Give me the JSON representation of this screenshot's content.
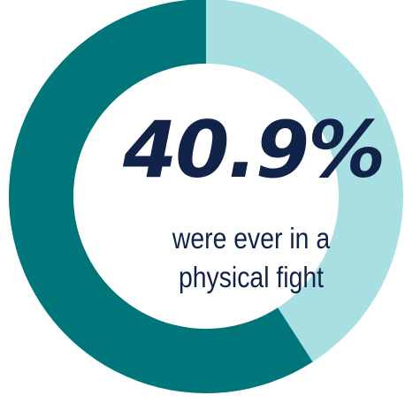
{
  "chart_data": {
    "type": "pie",
    "donut": true,
    "slices": [
      {
        "value": 40.9,
        "color": "#a8dfe2"
      },
      {
        "value": 59.1,
        "color": "#00767a"
      }
    ],
    "center_label": "40.9%",
    "caption_lines": [
      "were ever in a",
      "physical fight"
    ],
    "title": "",
    "legend": "none"
  },
  "colors": {
    "text": "#12234a",
    "highlight": "#a8dfe2",
    "remainder": "#00767a"
  }
}
